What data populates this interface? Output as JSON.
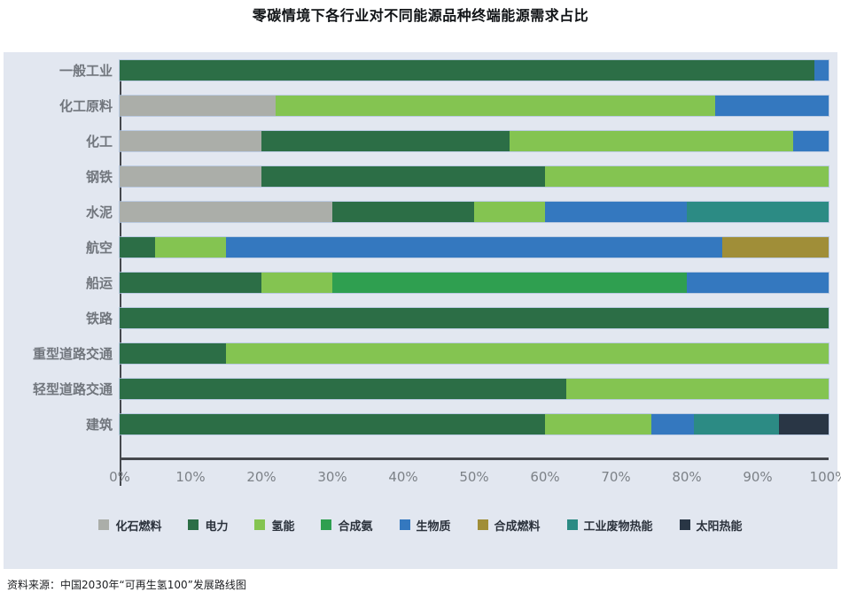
{
  "title": "零碳情境下各行业对不同能源品种终端能源需求占比",
  "source_note": "资料来源：中国2030年“可再生氢100”发展路线图",
  "panel_background": "#e2e7f0",
  "axis_color": "#45484d",
  "chart_data": {
    "type": "bar",
    "orientation": "horizontal",
    "stacked": true,
    "unit": "%",
    "title": "零碳情境下各行业对不同能源品种终端能源需求占比",
    "xlabel": "",
    "ylabel": "",
    "xlim": [
      0,
      100
    ],
    "x_ticks": [
      "0%",
      "10%",
      "20%",
      "30%",
      "40%",
      "50%",
      "60%",
      "70%",
      "80%",
      "90%",
      "100%"
    ],
    "grid": false,
    "legend_position": "bottom",
    "categories": [
      "一般工业",
      "化工原料",
      "化工",
      "钢铁",
      "水泥",
      "航空",
      "船运",
      "铁路",
      "重型道路交通",
      "轻型道路交通",
      "建筑"
    ],
    "series": [
      {
        "name": "化石燃料",
        "color": "#abaea9",
        "values": [
          0,
          22,
          20,
          20,
          30,
          0,
          0,
          0,
          0,
          0,
          0
        ]
      },
      {
        "name": "电力",
        "color": "#2c6e46",
        "values": [
          98,
          0,
          35,
          40,
          20,
          5,
          20,
          100,
          15,
          63,
          60
        ]
      },
      {
        "name": "氢能",
        "color": "#84c451",
        "values": [
          0,
          62,
          40,
          40,
          10,
          10,
          10,
          0,
          85,
          37,
          15
        ]
      },
      {
        "name": "合成氨",
        "color": "#2f9f50",
        "values": [
          0,
          0,
          0,
          0,
          0,
          0,
          50,
          0,
          0,
          0,
          0
        ]
      },
      {
        "name": "生物质",
        "color": "#3478bf",
        "values": [
          2,
          16,
          5,
          0,
          20,
          70,
          20,
          0,
          0,
          0,
          6
        ]
      },
      {
        "name": "合成燃料",
        "color": "#a08e38",
        "values": [
          0,
          0,
          0,
          0,
          0,
          15,
          0,
          0,
          0,
          0,
          0
        ]
      },
      {
        "name": "工业废物热能",
        "color": "#2c8b84",
        "values": [
          0,
          0,
          0,
          0,
          20,
          0,
          0,
          0,
          0,
          0,
          12
        ]
      },
      {
        "name": "太阳热能",
        "color": "#293645",
        "values": [
          0,
          0,
          0,
          0,
          0,
          0,
          0,
          0,
          0,
          0,
          7
        ]
      }
    ]
  }
}
